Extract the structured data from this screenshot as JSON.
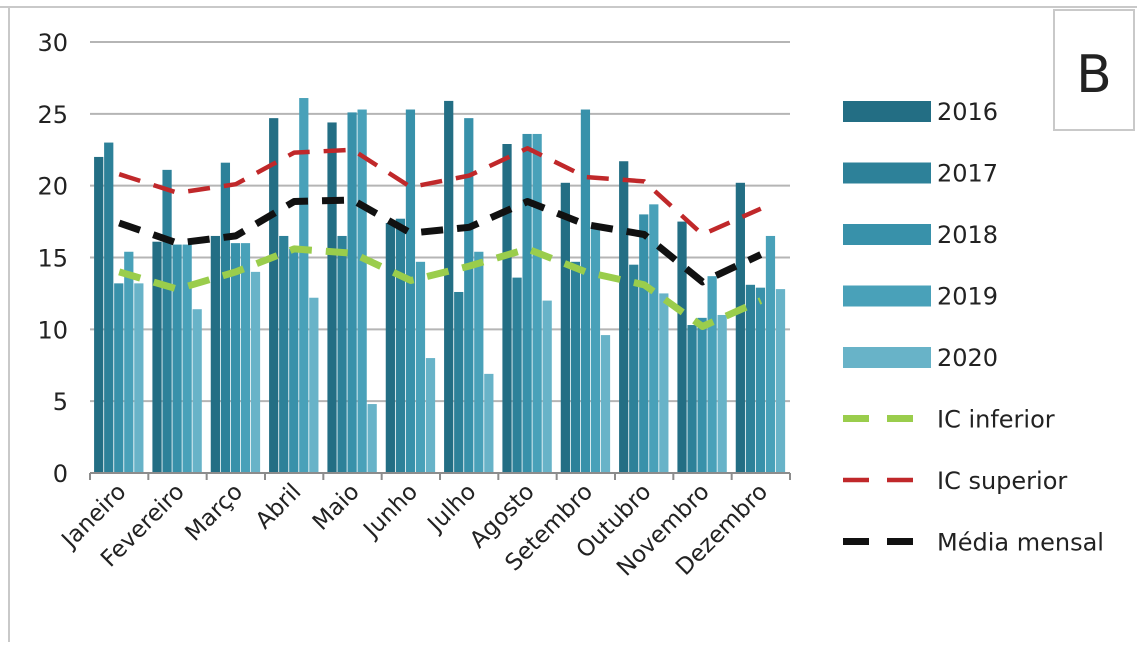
{
  "panel_label": "B",
  "colors": {
    "2016": "#236e84",
    "2017": "#2d8199",
    "2018": "#3891aa",
    "2019": "#49a1b9",
    "2020": "#68b3c8",
    "ic_inferior": "#9acd4c",
    "ic_superior": "#c0282a",
    "media_mensal": "#111111",
    "grid": "#b5b5b5"
  },
  "chart_data": {
    "type": "bar",
    "title": "",
    "xlabel": "",
    "ylabel": "",
    "ylim": [
      0,
      30
    ],
    "yticks": [
      "0",
      "5",
      "10",
      "15",
      "20",
      "25",
      "30"
    ],
    "grid": "horizontal",
    "legend_position": "right",
    "categories": [
      "Janeiro",
      "Fevereiro",
      "Março",
      "Abril",
      "Maio",
      "Junho",
      "Julho",
      "Agosto",
      "Setembro",
      "Outubro",
      "Novembro",
      "Dezembro"
    ],
    "series": [
      {
        "name": "2016",
        "kind": "bar",
        "values": [
          22.0,
          16.1,
          16.5,
          24.7,
          24.4,
          17.4,
          25.9,
          22.9,
          20.2,
          21.7,
          17.5,
          20.2
        ]
      },
      {
        "name": "2017",
        "kind": "bar",
        "values": [
          23.0,
          21.1,
          21.6,
          16.5,
          16.5,
          17.7,
          12.6,
          13.6,
          14.7,
          14.5,
          10.3,
          13.1
        ]
      },
      {
        "name": "2018",
        "kind": "bar",
        "values": [
          13.2,
          15.9,
          16.0,
          15.6,
          25.1,
          25.3,
          24.7,
          23.6,
          25.3,
          18.0,
          10.8,
          12.9
        ]
      },
      {
        "name": "2019",
        "kind": "bar",
        "values": [
          15.4,
          15.9,
          16.0,
          26.1,
          25.3,
          14.7,
          15.4,
          23.6,
          17.1,
          18.7,
          13.7,
          16.5
        ]
      },
      {
        "name": "2020",
        "kind": "bar",
        "values": [
          13.2,
          11.4,
          14.0,
          12.2,
          4.8,
          8.0,
          6.9,
          12.0,
          9.6,
          12.5,
          11.0,
          12.8
        ]
      },
      {
        "name": "IC inferior",
        "kind": "line",
        "values": [
          14.0,
          12.8,
          14.0,
          15.6,
          15.3,
          13.4,
          14.4,
          15.6,
          14.0,
          13.1,
          10.2,
          12.0
        ]
      },
      {
        "name": "IC superior",
        "kind": "line",
        "values": [
          20.8,
          19.5,
          20.1,
          22.3,
          22.5,
          19.9,
          20.7,
          22.6,
          20.6,
          20.3,
          16.6,
          18.4
        ]
      },
      {
        "name": "Média mensal",
        "kind": "line",
        "values": [
          17.4,
          16.0,
          16.5,
          18.9,
          19.0,
          16.7,
          17.1,
          18.9,
          17.3,
          16.6,
          13.3,
          15.2
        ]
      }
    ]
  }
}
